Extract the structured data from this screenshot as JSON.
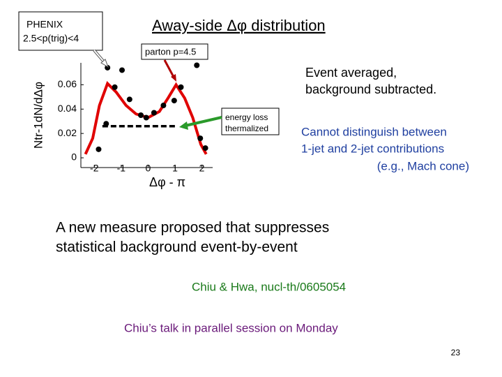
{
  "slide": {
    "box_label": [
      "PHENIX",
      "2.5<p(trig)<4"
    ],
    "title": "Away-side Δφ distribution",
    "parton_label": "parton p=4.5",
    "note": [
      "Event averaged,",
      "background subtracted."
    ],
    "energy_label": [
      "energy loss",
      "thermalized"
    ],
    "blue_note": [
      "Cannot distinguish between",
      "1-jet and 2-jet contributions",
      "(e.g., Mach cone)"
    ],
    "main_text": [
      "A new measure proposed that suppresses",
      "statistical background event-by-event"
    ],
    "reference": "Chiu & Hwa, nucl-th/0605054",
    "talk": "Chiu’s talk in parallel session on Monday",
    "page_number": "23"
  },
  "chart_data": {
    "type": "line",
    "xlabel": "Δφ - π",
    "ylabel": "Ntr-1dN/dΔφ",
    "xlim": [
      -2.5,
      2.4
    ],
    "ylim": [
      -0.008,
      0.078
    ],
    "xticks": [
      -2,
      -1,
      0,
      1,
      2
    ],
    "yticks": [
      0,
      0.02,
      0.04,
      0.06
    ],
    "series": [
      {
        "mode": "line",
        "color": "#e00000",
        "x": [
          -2.33,
          -2.06,
          -1.81,
          -1.51,
          -1.19,
          -0.82,
          -0.45,
          0,
          0.42,
          0.74,
          1.04,
          1.36,
          1.66,
          1.96,
          2.16
        ],
        "values": [
          0.003,
          0.016,
          0.043,
          0.061,
          0.054,
          0.043,
          0.036,
          0.033,
          0.038,
          0.049,
          0.06,
          0.049,
          0.033,
          0.011,
          0.003
        ]
      },
      {
        "mode": "dashed",
        "color": "#000000",
        "x": [
          -1.7,
          1.05
        ],
        "values": [
          0.026,
          0.026
        ]
      },
      {
        "mode": "markers",
        "color": "#000000",
        "x": [
          -1.84,
          -1.56,
          -1.51,
          -1.24,
          -0.97,
          -0.69,
          -0.27,
          -0.07,
          0.22,
          0.57,
          0.97,
          1.22,
          1.81,
          1.94,
          2.13
        ],
        "values": [
          0.007,
          0.028,
          0.074,
          0.058,
          0.072,
          0.048,
          0.035,
          0.033,
          0.037,
          0.043,
          0.047,
          0.058,
          0.076,
          0.016,
          0.008
        ]
      }
    ]
  }
}
